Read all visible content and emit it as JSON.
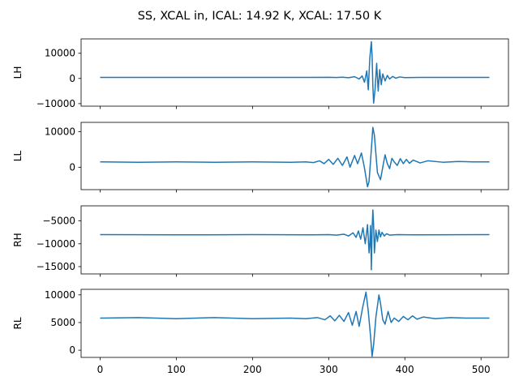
{
  "figure": {
    "title": "SS, XCAL in, ICAL: 14.92 K, XCAL: 17.50 K"
  },
  "chart_data": [
    {
      "type": "line",
      "ylabel": "LH",
      "xlim": [
        -25,
        536
      ],
      "ylim": [
        -11000,
        15700
      ],
      "yticks": [
        -10000,
        0,
        10000
      ],
      "ytick_labels": [
        "−10000",
        "0",
        "10000"
      ],
      "show_xticklabels": false,
      "series": [
        {
          "color": "#1f77b4",
          "points": [
            [
              0,
              400
            ],
            [
              100,
              400
            ],
            [
              200,
              420
            ],
            [
              270,
              400
            ],
            [
              300,
              450
            ],
            [
              310,
              380
            ],
            [
              318,
              500
            ],
            [
              326,
              300
            ],
            [
              334,
              700
            ],
            [
              340,
              -200
            ],
            [
              344,
              1000
            ],
            [
              347,
              -1500
            ],
            [
              350,
              3000
            ],
            [
              352,
              -4500
            ],
            [
              354,
              8000
            ],
            [
              356,
              14600
            ],
            [
              357,
              9000
            ],
            [
              358,
              -3000
            ],
            [
              359,
              -9800
            ],
            [
              361,
              -4000
            ],
            [
              363,
              6000
            ],
            [
              365,
              -5000
            ],
            [
              367,
              3500
            ],
            [
              369,
              -2500
            ],
            [
              371,
              1800
            ],
            [
              374,
              -1000
            ],
            [
              377,
              1200
            ],
            [
              380,
              -200
            ],
            [
              384,
              800
            ],
            [
              388,
              100
            ],
            [
              393,
              600
            ],
            [
              400,
              350
            ],
            [
              420,
              420
            ],
            [
              511,
              400
            ]
          ]
        }
      ]
    },
    {
      "type": "line",
      "ylabel": "LL",
      "xlim": [
        -25,
        536
      ],
      "ylim": [
        -6300,
        12600
      ],
      "yticks": [
        0,
        10000
      ],
      "ytick_labels": [
        "0",
        "10000"
      ],
      "show_xticklabels": false,
      "series": [
        {
          "color": "#1f77b4",
          "points": [
            [
              0,
              1500
            ],
            [
              50,
              1400
            ],
            [
              100,
              1500
            ],
            [
              150,
              1400
            ],
            [
              200,
              1500
            ],
            [
              250,
              1400
            ],
            [
              270,
              1500
            ],
            [
              280,
              1300
            ],
            [
              288,
              1800
            ],
            [
              294,
              1000
            ],
            [
              300,
              2200
            ],
            [
              306,
              800
            ],
            [
              312,
              2500
            ],
            [
              318,
              500
            ],
            [
              324,
              2900
            ],
            [
              328,
              0
            ],
            [
              334,
              3300
            ],
            [
              338,
              1000
            ],
            [
              343,
              4000
            ],
            [
              347,
              -200
            ],
            [
              351,
              -5500
            ],
            [
              353,
              -4000
            ],
            [
              356,
              5000
            ],
            [
              358,
              11200
            ],
            [
              360,
              9000
            ],
            [
              364,
              -1500
            ],
            [
              368,
              -3500
            ],
            [
              371,
              0
            ],
            [
              374,
              3500
            ],
            [
              377,
              1000
            ],
            [
              380,
              -400
            ],
            [
              383,
              2500
            ],
            [
              386,
              1500
            ],
            [
              390,
              500
            ],
            [
              394,
              2400
            ],
            [
              398,
              1000
            ],
            [
              402,
              2200
            ],
            [
              406,
              1100
            ],
            [
              411,
              2000
            ],
            [
              420,
              1200
            ],
            [
              430,
              1800
            ],
            [
              450,
              1400
            ],
            [
              470,
              1600
            ],
            [
              490,
              1500
            ],
            [
              511,
              1500
            ]
          ]
        }
      ]
    },
    {
      "type": "line",
      "ylabel": "RH",
      "xlim": [
        -25,
        536
      ],
      "ylim": [
        -16600,
        -1700
      ],
      "yticks": [
        -15000,
        -10000,
        -5000
      ],
      "ytick_labels": [
        "−15000",
        "−10000",
        "−5000"
      ],
      "show_xticklabels": false,
      "series": [
        {
          "color": "#1f77b4",
          "points": [
            [
              0,
              -8000
            ],
            [
              100,
              -8050
            ],
            [
              200,
              -8000
            ],
            [
              280,
              -8050
            ],
            [
              300,
              -8000
            ],
            [
              310,
              -8100
            ],
            [
              320,
              -7900
            ],
            [
              326,
              -8300
            ],
            [
              332,
              -7600
            ],
            [
              336,
              -8600
            ],
            [
              339,
              -7200
            ],
            [
              342,
              -9000
            ],
            [
              345,
              -6500
            ],
            [
              348,
              -10000
            ],
            [
              351,
              -5800
            ],
            [
              353,
              -12000
            ],
            [
              354,
              -10000
            ],
            [
              355,
              -6000
            ],
            [
              356,
              -15700
            ],
            [
              357,
              -7000
            ],
            [
              358,
              -2600
            ],
            [
              359,
              -6000
            ],
            [
              360,
              -12000
            ],
            [
              362,
              -7000
            ],
            [
              364,
              -9500
            ],
            [
              366,
              -7000
            ],
            [
              368,
              -8500
            ],
            [
              370,
              -7500
            ],
            [
              373,
              -8300
            ],
            [
              376,
              -7800
            ],
            [
              380,
              -8100
            ],
            [
              390,
              -8000
            ],
            [
              420,
              -8050
            ],
            [
              511,
              -8000
            ]
          ]
        }
      ]
    },
    {
      "type": "line",
      "ylabel": "RL",
      "xlim": [
        -25,
        536
      ],
      "ylim": [
        -1300,
        11000
      ],
      "yticks": [
        0,
        5000,
        10000
      ],
      "ytick_labels": [
        "0",
        "5000",
        "10000"
      ],
      "show_xticklabels": true,
      "xticks": [
        0,
        100,
        200,
        300,
        400,
        500
      ],
      "series": [
        {
          "color": "#1f77b4",
          "points": [
            [
              0,
              5800
            ],
            [
              50,
              5900
            ],
            [
              100,
              5700
            ],
            [
              150,
              5900
            ],
            [
              200,
              5700
            ],
            [
              250,
              5800
            ],
            [
              270,
              5700
            ],
            [
              285,
              5900
            ],
            [
              295,
              5500
            ],
            [
              302,
              6200
            ],
            [
              308,
              5300
            ],
            [
              314,
              6300
            ],
            [
              320,
              5200
            ],
            [
              326,
              6800
            ],
            [
              331,
              4500
            ],
            [
              336,
              7000
            ],
            [
              340,
              4300
            ],
            [
              345,
              8000
            ],
            [
              349,
              10500
            ],
            [
              352,
              7000
            ],
            [
              355,
              2500
            ],
            [
              357,
              -1100
            ],
            [
              359,
              1000
            ],
            [
              362,
              6000
            ],
            [
              366,
              10000
            ],
            [
              368,
              8500
            ],
            [
              371,
              5500
            ],
            [
              374,
              4700
            ],
            [
              378,
              7000
            ],
            [
              382,
              5000
            ],
            [
              386,
              5800
            ],
            [
              392,
              5200
            ],
            [
              398,
              6100
            ],
            [
              404,
              5500
            ],
            [
              410,
              6200
            ],
            [
              416,
              5600
            ],
            [
              424,
              6000
            ],
            [
              440,
              5700
            ],
            [
              460,
              5900
            ],
            [
              480,
              5800
            ],
            [
              511,
              5800
            ]
          ]
        }
      ]
    }
  ]
}
